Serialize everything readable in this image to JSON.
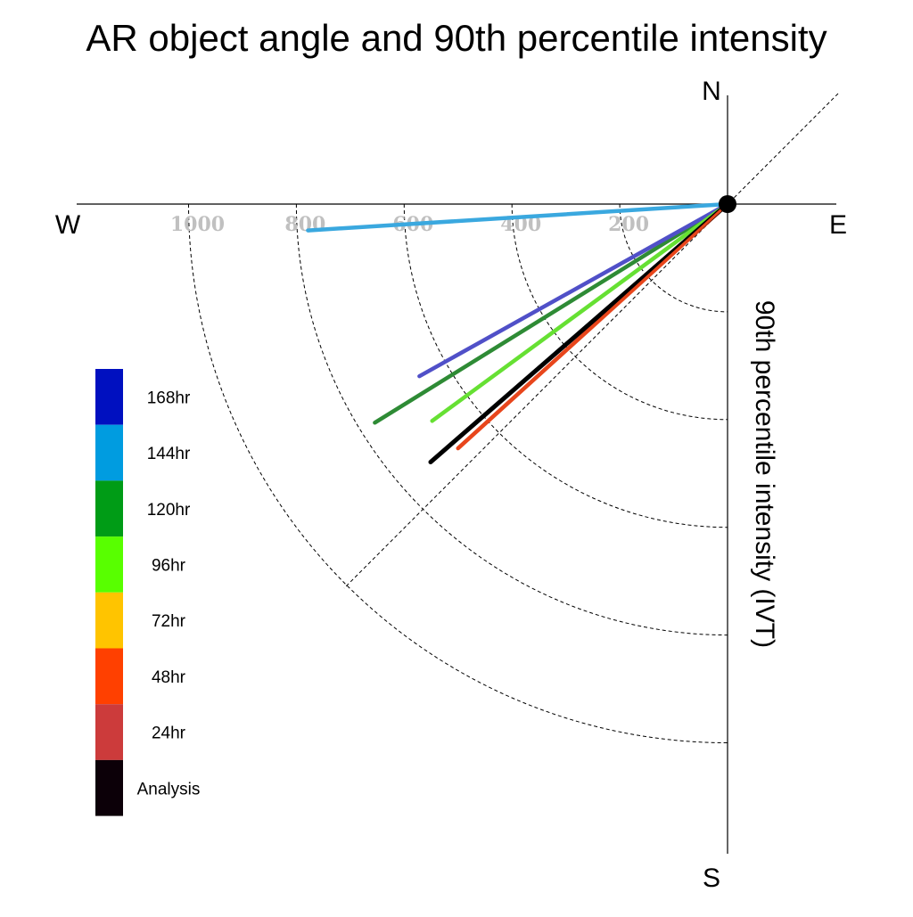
{
  "chart_data": {
    "type": "polar-vector",
    "title": "AR object angle and 90th percentile intensity",
    "ylabel": "90th percentile intensity (IVT)",
    "compass": {
      "n": "N",
      "s": "S",
      "e": "E",
      "w": "W"
    },
    "radial_ticks": [
      200,
      400,
      600,
      800,
      1000
    ],
    "radial_tick_labels": [
      "200",
      "400",
      "600",
      "800",
      "1000"
    ],
    "rmax": 1200,
    "grid": true,
    "legend_position": "left",
    "legend": [
      {
        "label": "168hr",
        "color": "#0010c0"
      },
      {
        "label": "144hr",
        "color": "#009ce0"
      },
      {
        "label": "120hr",
        "color": "#009c16"
      },
      {
        "label": "96hr",
        "color": "#58ff00"
      },
      {
        "label": "72hr",
        "color": "#ffc400"
      },
      {
        "label": "48hr",
        "color": "#ff4000"
      },
      {
        "label": "24hr",
        "color": "#cc3b3b"
      },
      {
        "label": "Analysis",
        "color": "#0c0008"
      }
    ],
    "series": [
      {
        "name": "144hr",
        "color": "#3aa8df",
        "angle_deg": 266.4,
        "intensity": 780
      },
      {
        "name": "120hr",
        "color": "#2e8b35",
        "angle_deg": 238.2,
        "intensity": 770
      },
      {
        "name": "168hr",
        "color": "#5050c8",
        "angle_deg": 240.8,
        "intensity": 655
      },
      {
        "name": "96hr",
        "color": "#66e033",
        "angle_deg": 233.7,
        "intensity": 680
      },
      {
        "name": "48hr",
        "color": "#e8461c",
        "angle_deg": 227.8,
        "intensity": 675
      },
      {
        "name": "Analysis",
        "color": "#000000",
        "angle_deg": 229.0,
        "intensity": 730
      }
    ]
  }
}
